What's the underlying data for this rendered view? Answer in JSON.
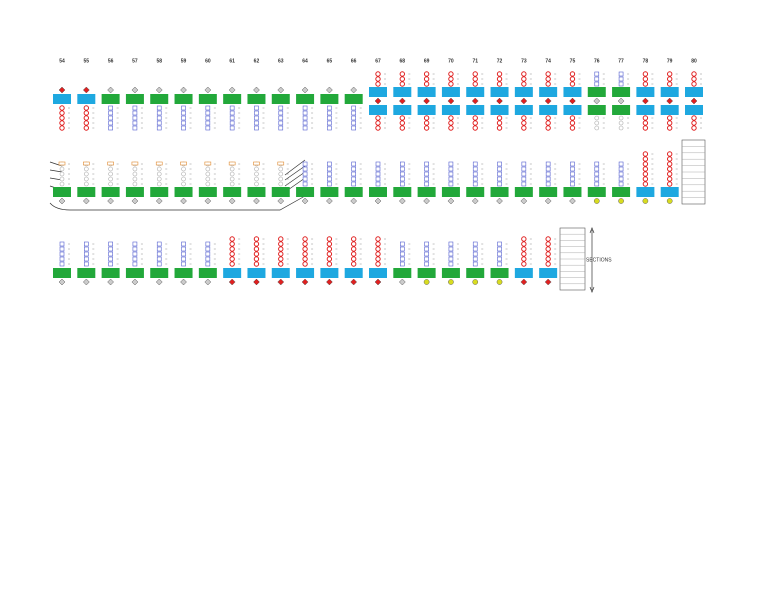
{
  "diagram": {
    "column_labels": [
      "54",
      "55",
      "56",
      "57",
      "58",
      "59",
      "60",
      "61",
      "62",
      "63",
      "64",
      "65",
      "66",
      "67",
      "68",
      "69",
      "70",
      "71",
      "72",
      "73",
      "74",
      "75",
      "76",
      "77",
      "78",
      "79",
      "80"
    ],
    "side_label": "SECTIONS"
  }
}
